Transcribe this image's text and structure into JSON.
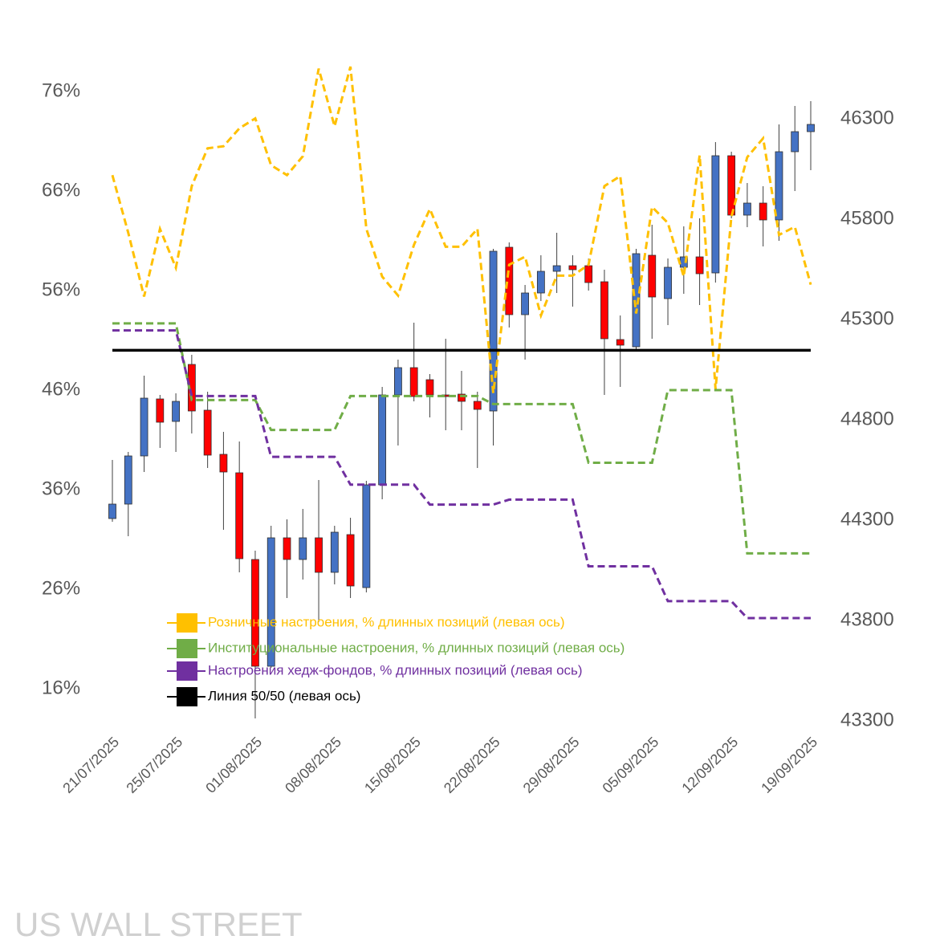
{
  "chart_data": {
    "type": "candlestick",
    "watermark": "US WALL STREET",
    "categories": [
      "21/07/2025",
      null,
      null,
      null,
      "25/07/2025",
      null,
      null,
      null,
      null,
      "01/08/2025",
      null,
      null,
      null,
      null,
      "08/08/2025",
      null,
      null,
      null,
      null,
      "15/08/2025",
      null,
      null,
      null,
      null,
      "22/08/2025",
      null,
      null,
      null,
      null,
      "29/08/2025",
      null,
      null,
      null,
      null,
      "05/09/2025",
      null,
      null,
      null,
      null,
      "12/09/2025",
      null,
      null,
      null,
      null,
      "19/09/2025"
    ],
    "candles": {
      "axis": "y2",
      "up_color": "#4472c4",
      "down_color": "#ff0000",
      "open": [
        44308,
        44380,
        44620,
        44904,
        44792,
        45076,
        44848,
        44628,
        44536,
        44104,
        43572,
        44212,
        44104,
        44212,
        44040,
        44228,
        43964,
        44476,
        44924,
        45060,
        45000,
        44924,
        44928,
        44892,
        44844,
        45660,
        45324,
        45432,
        45540,
        45568,
        45568,
        45488,
        45200,
        45164,
        45620,
        45404,
        45560,
        45612,
        45532,
        46116,
        45820,
        45880,
        45796,
        46136,
        46236
      ],
      "high": [
        44600,
        44640,
        45020,
        44924,
        44932,
        45124,
        44940,
        44740,
        44692,
        44148,
        44272,
        44304,
        44356,
        44500,
        44272,
        44312,
        44496,
        44964,
        45100,
        45284,
        45028,
        45204,
        45044,
        44940,
        45652,
        45684,
        45472,
        45620,
        45732,
        45620,
        45604,
        45548,
        45320,
        45652,
        45772,
        45604,
        45764,
        45804,
        46184,
        46136,
        45980,
        45964,
        46272,
        46364,
        46388
      ],
      "low": [
        44292,
        44220,
        44540,
        44660,
        44640,
        44732,
        44560,
        44252,
        44040,
        43312,
        43564,
        43912,
        44004,
        43792,
        43980,
        43912,
        43940,
        44404,
        44672,
        44892,
        44812,
        44748,
        44748,
        44560,
        44672,
        45260,
        45100,
        45392,
        45432,
        45364,
        45444,
        44924,
        44964,
        45152,
        45204,
        45272,
        45428,
        45372,
        45484,
        45804,
        45760,
        45664,
        45692,
        45940,
        46044
      ],
      "close": [
        44380,
        44620,
        44908,
        44788,
        44892,
        44844,
        44624,
        44540,
        44108,
        43572,
        44212,
        44104,
        44212,
        44040,
        44240,
        43972,
        44476,
        44924,
        45060,
        44916,
        44924,
        44916,
        44892,
        44852,
        45640,
        45324,
        45432,
        45540,
        45568,
        45548,
        45484,
        45204,
        45172,
        45628,
        45412,
        45560,
        45612,
        45528,
        46116,
        45820,
        45880,
        45796,
        46136,
        46236,
        46272
      ]
    },
    "series": [
      {
        "name": "Розничные настроения, % длинных позиций (левая ось)",
        "color": "#ffc000",
        "dashed": true,
        "values": [
          67.6,
          61.8,
          55.4,
          62.2,
          58.3,
          66.5,
          70.3,
          70.5,
          72.3,
          73.3,
          68.6,
          67.6,
          69.5,
          78.3,
          72.5,
          78.5,
          62.2,
          57.4,
          55.5,
          60.6,
          64.2,
          60.4,
          60.4,
          62.2,
          45.7,
          58.6,
          59.4,
          53.5,
          57.5,
          57.5,
          58.6,
          66.5,
          67.5,
          53.7,
          64.4,
          62.8,
          57.4,
          69.6,
          46.1,
          63.4,
          69.4,
          71.3,
          61.6,
          62.4,
          56.6
        ]
      },
      {
        "name": "Институциональные настроения, % длинных позиций (левая ось)",
        "color": "#70ad47",
        "dashed": true,
        "values": [
          52.7,
          52.7,
          52.7,
          52.7,
          52.7,
          45.0,
          45.0,
          45.0,
          45.0,
          45.0,
          42.0,
          42.0,
          42.0,
          42.0,
          42.0,
          45.4,
          45.4,
          45.4,
          45.4,
          45.4,
          45.4,
          45.4,
          45.4,
          45.4,
          44.6,
          44.6,
          44.6,
          44.6,
          44.6,
          44.6,
          38.7,
          38.7,
          38.7,
          38.7,
          38.7,
          46.0,
          46.0,
          46.0,
          46.0,
          46.0,
          29.6,
          29.6,
          29.6,
          29.6,
          29.6
        ]
      },
      {
        "name": "Настроения хедж-фондов, % длинных позиций (левая ось)",
        "color": "#7030a0",
        "dashed": true,
        "values": [
          52.0,
          52.0,
          52.0,
          52.0,
          52.0,
          45.4,
          45.4,
          45.4,
          45.4,
          45.4,
          39.3,
          39.3,
          39.3,
          39.3,
          39.3,
          36.5,
          36.5,
          36.5,
          36.5,
          36.5,
          34.5,
          34.5,
          34.5,
          34.5,
          34.5,
          35.0,
          35.0,
          35.0,
          35.0,
          35.0,
          28.3,
          28.3,
          28.3,
          28.3,
          28.3,
          24.8,
          24.8,
          24.8,
          24.8,
          24.8,
          23.1,
          23.1,
          23.1,
          23.1,
          23.1
        ]
      },
      {
        "name": "Линия 50/50 (левая ось)",
        "color": "#000000",
        "dashed": false,
        "values": [
          50,
          50,
          50,
          50,
          50,
          50,
          50,
          50,
          50,
          50,
          50,
          50,
          50,
          50,
          50,
          50,
          50,
          50,
          50,
          50,
          50,
          50,
          50,
          50,
          50,
          50,
          50,
          50,
          50,
          50,
          50,
          50,
          50,
          50,
          50,
          50,
          50,
          50,
          50,
          50,
          50,
          50,
          50,
          50,
          50
        ]
      }
    ],
    "ylim": [
      16,
      76
    ],
    "yticks": [
      {
        "value": 16,
        "label": "16%"
      },
      {
        "value": 26,
        "label": "26%"
      },
      {
        "value": 36,
        "label": "36%"
      },
      {
        "value": 46,
        "label": "46%"
      },
      {
        "value": 56,
        "label": "56%"
      },
      {
        "value": 66,
        "label": "66%"
      },
      {
        "value": 76,
        "label": "76%"
      }
    ],
    "y2lim": [
      43300,
      46300
    ],
    "y2ticks": [
      43300,
      43800,
      44300,
      44800,
      45300,
      45800,
      46300
    ],
    "legend": "bottom-left"
  }
}
